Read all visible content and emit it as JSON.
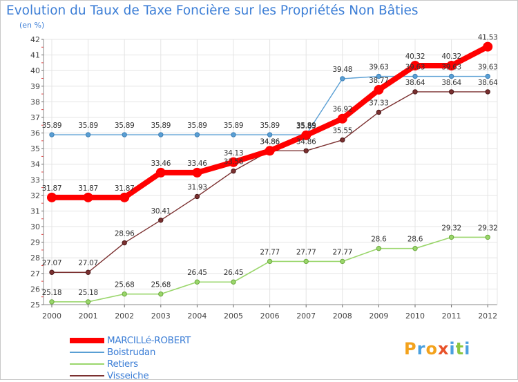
{
  "chart_data": {
    "type": "line",
    "title": "Evolution du Taux de Taxe Foncière sur les Propriétés Non Bâties",
    "ylabel": "(en %)",
    "xlabel": "",
    "ylim": [
      25,
      42
    ],
    "categories": [
      "2000",
      "2001",
      "2002",
      "2003",
      "2004",
      "2005",
      "2006",
      "2007",
      "2008",
      "2009",
      "2010",
      "2011",
      "2012"
    ],
    "series": [
      {
        "name": "MARCILLé-ROBERT",
        "color": "#ff0000",
        "values": [
          31.87,
          31.87,
          31.87,
          33.46,
          33.46,
          34.13,
          34.86,
          35.85,
          36.92,
          38.77,
          40.32,
          40.32,
          41.53
        ],
        "labels": [
          "31.87",
          "31.87",
          "31.87",
          "33.46",
          "33.46",
          "34.13",
          "34.86",
          "35.85",
          "36.92",
          "38.77",
          "40.32",
          "40.32",
          "41.53"
        ]
      },
      {
        "name": "Boistrudan",
        "color": "#5a9fd4",
        "values": [
          35.89,
          35.89,
          35.89,
          35.89,
          35.89,
          35.89,
          35.89,
          35.89,
          39.48,
          39.63,
          39.63,
          39.63,
          39.63
        ],
        "labels": [
          "35.89",
          "35.89",
          "35.89",
          "35.89",
          "35.89",
          "35.89",
          "35.89",
          "35.89",
          "39.48",
          "39.63",
          "39.63",
          "39.63",
          "39.63"
        ]
      },
      {
        "name": "Retiers",
        "color": "#9ad66b",
        "values": [
          25.18,
          25.18,
          25.68,
          25.68,
          26.45,
          26.45,
          27.77,
          27.77,
          27.77,
          28.6,
          28.6,
          29.32,
          29.32
        ],
        "labels": [
          "25.18",
          "25.18",
          "25.68",
          "25.68",
          "26.45",
          "26.45",
          "27.77",
          "27.77",
          "27.77",
          "28.6",
          "28.6",
          "29.32",
          "29.32"
        ]
      },
      {
        "name": "Visseiche",
        "color": "#7b3030",
        "values": [
          27.07,
          27.07,
          28.96,
          30.41,
          31.93,
          33.56,
          34.86,
          34.86,
          35.55,
          37.33,
          38.64,
          38.64,
          38.64
        ],
        "labels": [
          "27.07",
          "27.07",
          "28.96",
          "30.41",
          "31.93",
          "33.56",
          "34.86",
          "34.86",
          "35.55",
          "37.33",
          "38.64",
          "38.64",
          "38.64"
        ]
      }
    ],
    "yticks": [
      "25",
      "26",
      "27",
      "28",
      "29",
      "30",
      "31",
      "32",
      "33",
      "34",
      "35",
      "36",
      "37",
      "38",
      "39",
      "40",
      "41",
      "42"
    ],
    "grid": true,
    "legend_position": "bottom-left"
  },
  "brand": {
    "logo_letters": [
      "P",
      "r",
      "o",
      "x",
      "i",
      "t",
      "i"
    ],
    "logo_colors": [
      "#f3a21c",
      "#4aa0df",
      "#f3a21c",
      "#e8522a",
      "#4aa0df",
      "#8cc63f",
      "#4aa0df"
    ]
  }
}
